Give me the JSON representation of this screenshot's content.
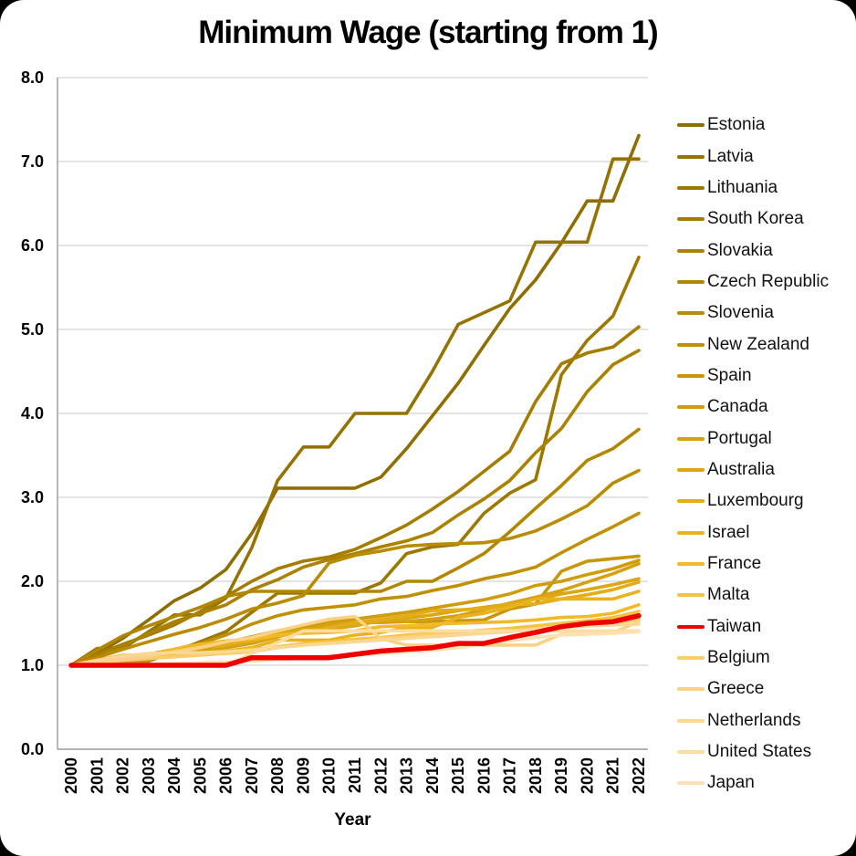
{
  "chart_data": {
    "type": "line",
    "title": "Minimum Wage (starting from 1)",
    "xlabel": "Year",
    "ylabel": "",
    "x": [
      2000,
      2001,
      2002,
      2003,
      2004,
      2005,
      2006,
      2007,
      2008,
      2009,
      2010,
      2011,
      2012,
      2013,
      2014,
      2015,
      2016,
      2017,
      2018,
      2019,
      2020,
      2021,
      2022
    ],
    "ylim": [
      0.0,
      8.0
    ],
    "yticks": [
      "0.0",
      "1.0",
      "2.0",
      "3.0",
      "4.0",
      "5.0",
      "6.0",
      "7.0",
      "8.0"
    ],
    "grid": "horizontal-only",
    "legend_position": "right",
    "highlight_series": "Taiwan",
    "highlight_color": "#ee0000",
    "series": [
      {
        "name": "Estonia",
        "color": "#8f6e00",
        "values": [
          1.0,
          1.14,
          1.32,
          1.54,
          1.77,
          1.92,
          2.14,
          2.57,
          3.11,
          3.11,
          3.11,
          3.11,
          3.24,
          3.58,
          3.97,
          4.36,
          4.81,
          5.25,
          5.59,
          6.03,
          6.53,
          6.53,
          7.31
        ]
      },
      {
        "name": "Latvia",
        "color": "#967300",
        "values": [
          1.0,
          1.2,
          1.2,
          1.4,
          1.6,
          1.6,
          1.8,
          2.4,
          3.2,
          3.6,
          3.6,
          4.0,
          4.0,
          4.0,
          4.5,
          5.06,
          5.2,
          5.34,
          6.04,
          6.04,
          6.04,
          7.03,
          7.03
        ]
      },
      {
        "name": "Lithuania",
        "color": "#9d7800",
        "values": [
          1.0,
          1.0,
          1.0,
          1.05,
          1.16,
          1.28,
          1.4,
          1.63,
          1.86,
          1.86,
          1.86,
          1.86,
          1.98,
          2.33,
          2.41,
          2.44,
          2.81,
          3.05,
          3.21,
          4.46,
          4.87,
          5.16,
          5.86
        ]
      },
      {
        "name": "South Korea",
        "color": "#a47d00",
        "values": [
          1.0,
          1.13,
          1.25,
          1.36,
          1.48,
          1.64,
          1.82,
          2.0,
          2.15,
          2.24,
          2.29,
          2.38,
          2.52,
          2.67,
          2.86,
          3.07,
          3.31,
          3.55,
          4.14,
          4.59,
          4.72,
          4.79,
          5.03
        ]
      },
      {
        "name": "Slovakia",
        "color": "#ab8200",
        "values": [
          1.0,
          1.1,
          1.23,
          1.38,
          1.52,
          1.62,
          1.72,
          1.9,
          2.02,
          2.17,
          2.26,
          2.33,
          2.41,
          2.48,
          2.58,
          2.79,
          2.98,
          3.2,
          3.53,
          3.82,
          4.26,
          4.58,
          4.75
        ]
      },
      {
        "name": "Czech Republic",
        "color": "#b28700",
        "values": [
          1.0,
          1.18,
          1.35,
          1.47,
          1.58,
          1.69,
          1.82,
          1.88,
          1.88,
          1.88,
          1.88,
          1.88,
          1.88,
          2.0,
          2.0,
          2.16,
          2.33,
          2.59,
          2.87,
          3.14,
          3.44,
          3.58,
          3.81
        ]
      },
      {
        "name": "Slovenia",
        "color": "#b98c03",
        "values": [
          1.0,
          1.09,
          1.19,
          1.28,
          1.37,
          1.45,
          1.55,
          1.67,
          1.74,
          1.83,
          2.22,
          2.31,
          2.36,
          2.42,
          2.44,
          2.45,
          2.46,
          2.51,
          2.6,
          2.74,
          2.9,
          3.17,
          3.32
        ]
      },
      {
        "name": "New Zealand",
        "color": "#c09106",
        "values": [
          1.0,
          1.02,
          1.06,
          1.13,
          1.19,
          1.26,
          1.36,
          1.49,
          1.59,
          1.66,
          1.69,
          1.72,
          1.79,
          1.82,
          1.89,
          1.95,
          2.03,
          2.09,
          2.17,
          2.34,
          2.5,
          2.65,
          2.81
        ]
      },
      {
        "name": "Spain",
        "color": "#c79609",
        "values": [
          1.0,
          1.02,
          1.04,
          1.06,
          1.16,
          1.21,
          1.27,
          1.34,
          1.41,
          1.47,
          1.49,
          1.51,
          1.51,
          1.52,
          1.52,
          1.53,
          1.54,
          1.67,
          1.73,
          2.12,
          2.24,
          2.27,
          2.3
        ]
      },
      {
        "name": "Canada",
        "color": "#ce9c0d",
        "values": [
          1.0,
          1.03,
          1.06,
          1.09,
          1.13,
          1.17,
          1.22,
          1.28,
          1.36,
          1.44,
          1.51,
          1.55,
          1.59,
          1.63,
          1.68,
          1.73,
          1.78,
          1.85,
          1.95,
          2.0,
          2.08,
          2.15,
          2.25
        ]
      },
      {
        "name": "Portugal",
        "color": "#d5a111",
        "values": [
          1.0,
          1.05,
          1.09,
          1.12,
          1.16,
          1.18,
          1.21,
          1.26,
          1.34,
          1.41,
          1.49,
          1.52,
          1.52,
          1.52,
          1.55,
          1.59,
          1.66,
          1.74,
          1.81,
          1.89,
          1.99,
          2.09,
          2.21
        ]
      },
      {
        "name": "Australia",
        "color": "#dca715",
        "values": [
          1.0,
          1.03,
          1.07,
          1.12,
          1.17,
          1.21,
          1.27,
          1.31,
          1.37,
          1.43,
          1.43,
          1.47,
          1.53,
          1.56,
          1.6,
          1.65,
          1.69,
          1.73,
          1.79,
          1.85,
          1.9,
          1.96,
          2.03
        ]
      },
      {
        "name": "Luxembourg",
        "color": "#e3ad19",
        "values": [
          1.0,
          1.04,
          1.09,
          1.12,
          1.15,
          1.21,
          1.24,
          1.29,
          1.35,
          1.4,
          1.45,
          1.51,
          1.55,
          1.59,
          1.65,
          1.66,
          1.67,
          1.72,
          1.73,
          1.79,
          1.84,
          1.9,
          1.99
        ]
      },
      {
        "name": "Israel",
        "color": "#eab31e",
        "values": [
          1.0,
          1.06,
          1.12,
          1.12,
          1.12,
          1.15,
          1.17,
          1.21,
          1.3,
          1.3,
          1.3,
          1.36,
          1.39,
          1.45,
          1.45,
          1.57,
          1.62,
          1.69,
          1.79,
          1.79,
          1.79,
          1.79,
          1.88
        ]
      },
      {
        "name": "France",
        "color": "#f0ba28",
        "values": [
          1.0,
          1.04,
          1.07,
          1.12,
          1.19,
          1.25,
          1.29,
          1.31,
          1.36,
          1.38,
          1.39,
          1.41,
          1.46,
          1.47,
          1.49,
          1.5,
          1.51,
          1.52,
          1.54,
          1.57,
          1.58,
          1.62,
          1.72
        ]
      },
      {
        "name": "Malta",
        "color": "#f5c343",
        "values": [
          1.0,
          1.03,
          1.06,
          1.08,
          1.11,
          1.13,
          1.16,
          1.19,
          1.22,
          1.26,
          1.28,
          1.31,
          1.33,
          1.36,
          1.38,
          1.4,
          1.42,
          1.44,
          1.47,
          1.5,
          1.53,
          1.57,
          1.64
        ]
      },
      {
        "name": "Taiwan",
        "color": "#ee0000",
        "values": [
          1.0,
          1.0,
          1.0,
          1.0,
          1.0,
          1.0,
          1.0,
          1.09,
          1.09,
          1.09,
          1.09,
          1.13,
          1.17,
          1.19,
          1.21,
          1.26,
          1.26,
          1.33,
          1.39,
          1.46,
          1.5,
          1.52,
          1.59
        ]
      },
      {
        "name": "Belgium",
        "color": "#f9cd6e",
        "values": [
          1.0,
          1.03,
          1.06,
          1.08,
          1.1,
          1.12,
          1.14,
          1.16,
          1.21,
          1.24,
          1.26,
          1.28,
          1.32,
          1.34,
          1.37,
          1.37,
          1.39,
          1.41,
          1.43,
          1.45,
          1.47,
          1.49,
          1.55
        ]
      },
      {
        "name": "Greece",
        "color": "#fad285",
        "values": [
          1.0,
          1.04,
          1.07,
          1.11,
          1.16,
          1.21,
          1.28,
          1.33,
          1.41,
          1.48,
          1.55,
          1.58,
          1.32,
          1.24,
          1.24,
          1.24,
          1.24,
          1.24,
          1.24,
          1.37,
          1.37,
          1.39,
          1.52
        ]
      },
      {
        "name": "Netherlands",
        "color": "#fbd794",
        "values": [
          1.0,
          1.06,
          1.11,
          1.14,
          1.15,
          1.15,
          1.16,
          1.18,
          1.21,
          1.24,
          1.26,
          1.28,
          1.3,
          1.32,
          1.34,
          1.36,
          1.38,
          1.4,
          1.43,
          1.45,
          1.47,
          1.48,
          1.49
        ]
      },
      {
        "name": "United States",
        "color": "#fbdca3",
        "values": [
          1.0,
          1.0,
          1.0,
          1.0,
          1.0,
          1.0,
          1.0,
          1.14,
          1.27,
          1.41,
          1.41,
          1.41,
          1.41,
          1.41,
          1.41,
          1.41,
          1.41,
          1.41,
          1.41,
          1.41,
          1.41,
          1.41,
          1.41
        ]
      },
      {
        "name": "Japan",
        "color": "#fce2b3",
        "values": [
          1.0,
          1.01,
          1.01,
          1.01,
          1.02,
          1.03,
          1.04,
          1.05,
          1.07,
          1.08,
          1.11,
          1.12,
          1.14,
          1.16,
          1.18,
          1.21,
          1.25,
          1.29,
          1.33,
          1.36,
          1.37,
          1.38,
          1.4
        ]
      }
    ]
  }
}
